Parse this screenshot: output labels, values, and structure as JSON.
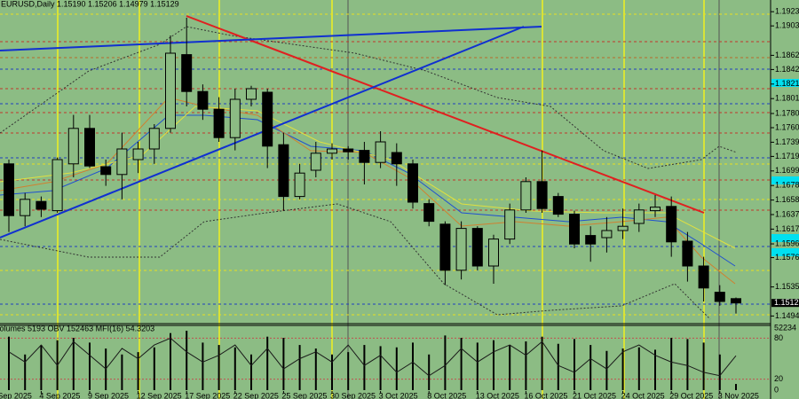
{
  "chart_data": [
    {
      "type": "candlestick",
      "title": "EURUSD,Daily 1.15190 1.15206 1.14979 1.15129",
      "open": [
        1.1709,
        1.1636,
        1.1656,
        1.1643,
        1.1709,
        1.1759,
        1.1705,
        1.1694,
        1.1715,
        1.173,
        1.1759,
        1.1863,
        1.1811,
        1.1786,
        1.1746,
        1.18,
        1.181,
        1.1736,
        1.1663,
        1.17,
        1.1724,
        1.173,
        1.1728,
        1.1711,
        1.1725,
        1.1709,
        1.1653,
        1.1624,
        1.1559,
        1.1618,
        1.1565,
        1.1603,
        1.1644,
        1.1684,
        1.1663,
        1.1638,
        1.1608,
        1.1605,
        1.1615,
        1.1625,
        1.1643,
        1.1649,
        1.16,
        1.1565,
        1.1528,
        1.1519
      ],
      "high": [
        1.1715,
        1.1668,
        1.1663,
        1.1718,
        1.1778,
        1.1778,
        1.1715,
        1.1753,
        1.174,
        1.1765,
        1.189,
        1.1915,
        1.1821,
        1.1803,
        1.1815,
        1.1819,
        1.1815,
        1.1753,
        1.1709,
        1.174,
        1.1738,
        1.1734,
        1.174,
        1.1755,
        1.1738,
        1.1715,
        1.1659,
        1.1628,
        1.1628,
        1.1621,
        1.1609,
        1.1653,
        1.169,
        1.1728,
        1.1668,
        1.1643,
        1.1621,
        1.1634,
        1.1646,
        1.1653,
        1.1665,
        1.1663,
        1.1613,
        1.1578,
        1.1538,
        1.15206
      ],
      "low": [
        1.1613,
        1.1621,
        1.1634,
        1.164,
        1.169,
        1.1703,
        1.1678,
        1.1659,
        1.1696,
        1.1709,
        1.1753,
        1.179,
        1.1771,
        1.174,
        1.1728,
        1.179,
        1.1703,
        1.1643,
        1.1659,
        1.169,
        1.1715,
        1.1715,
        1.168,
        1.1703,
        1.1678,
        1.1646,
        1.1621,
        1.1538,
        1.1546,
        1.1559,
        1.154,
        1.1596,
        1.164,
        1.164,
        1.1634,
        1.159,
        1.1571,
        1.1584,
        1.1603,
        1.1613,
        1.1634,
        1.1578,
        1.1543,
        1.1515,
        1.1509,
        1.14979
      ],
      "close": [
        1.1636,
        1.1659,
        1.1645,
        1.1715,
        1.1759,
        1.1706,
        1.1694,
        1.173,
        1.173,
        1.1759,
        1.1865,
        1.1811,
        1.1786,
        1.1746,
        1.18,
        1.1815,
        1.1734,
        1.1663,
        1.1696,
        1.1724,
        1.173,
        1.1726,
        1.1711,
        1.174,
        1.1709,
        1.1655,
        1.1628,
        1.1559,
        1.1618,
        1.1565,
        1.1603,
        1.1644,
        1.1684,
        1.1646,
        1.1638,
        1.1596,
        1.1596,
        1.1615,
        1.1621,
        1.1644,
        1.1648,
        1.1599,
        1.1565,
        1.1534,
        1.1515,
        1.15129
      ],
      "bull_color": "#8cbc84",
      "bear_color": "#000000",
      "ylim": [
        1.148375,
        1.194
      ],
      "yticks": [
        1.19235,
        1.19035,
        {
          "value": 1.1862,
          "label": "1.18620"
        },
        {
          "value": 1.1842,
          "label": "1.18420"
        },
        1.18215,
        {
          "value": 1.1801,
          "label": "1.18010"
        },
        {
          "value": 1.178,
          "label": "1.17800"
        },
        {
          "value": 1.176,
          "label": "1.17600"
        },
        1.17395,
        1.17195,
        {
          "value": 1.1699,
          "label": "1.16990"
        },
        1.16785,
        {
          "value": 1.1658,
          "label": "1.16580"
        },
        1.16375,
        {
          "value": 1.1617,
          "label": "1.16170"
        },
        1.15962,
        1.15768,
        1.15355,
        1.14945
      ],
      "xticks": [
        {
          "value": -1,
          "label": "1 Sep 2025"
        },
        {
          "value": 2,
          "label": "4 Sep 2025"
        },
        {
          "value": 5,
          "label": "9 Sep 2025"
        },
        {
          "value": 8,
          "label": "12 Sep 2025"
        },
        {
          "value": 11,
          "label": "17 Sep 2025"
        },
        {
          "value": 14,
          "label": "22 Sep 2025"
        },
        {
          "value": 17,
          "label": "25 Sep 2025"
        },
        {
          "value": 20,
          "label": "30 Sep 2025"
        },
        {
          "value": 23,
          "label": "3 Oct 2025"
        },
        {
          "value": 26,
          "label": "8 Oct 2025"
        },
        {
          "value": 29,
          "label": "13 Oct 2025"
        },
        {
          "value": 32,
          "label": "16 Oct 2025"
        },
        {
          "value": 35,
          "label": "21 Oct 2025"
        },
        {
          "value": 38,
          "label": "24 Oct 2025"
        },
        {
          "value": 41,
          "label": "29 Oct 2025"
        },
        {
          "value": 44,
          "label": "3 Nov 2025"
        }
      ]
    },
    {
      "type": "indicator",
      "title": "Volumes 5193 OBV 152463 MFI(16) 54.3203",
      "volumes": [
        45000,
        30000,
        38000,
        42000,
        44000,
        40000,
        35000,
        30000,
        32000,
        36000,
        48000,
        50000,
        40000,
        38000,
        36000,
        30000,
        45000,
        44000,
        38000,
        35000,
        30000,
        32000,
        38000,
        37000,
        36000,
        40000,
        30000,
        46000,
        44000,
        40000,
        42000,
        38000,
        41000,
        45000,
        39000,
        43000,
        38000,
        33000,
        35000,
        36000,
        34000,
        44000,
        43000,
        40000,
        30000,
        5193
      ],
      "mfi": [
        60,
        45,
        70,
        40,
        75,
        55,
        35,
        65,
        50,
        70,
        80,
        60,
        45,
        55,
        70,
        40,
        65,
        35,
        50,
        60,
        45,
        70,
        40,
        55,
        30,
        45,
        25,
        40,
        65,
        45,
        60,
        70,
        55,
        75,
        40,
        30,
        50,
        35,
        60,
        70,
        55,
        45,
        40,
        30,
        25,
        54.3203
      ],
      "volume_color": "#000000",
      "mfi_color": "#1a1a1a",
      "ylim": [
        0,
        52234
      ],
      "yticks": [
        0,
        52234
      ],
      "y2lim": [
        0,
        100
      ],
      "y2ticks": [
        20,
        80
      ]
    }
  ]
}
